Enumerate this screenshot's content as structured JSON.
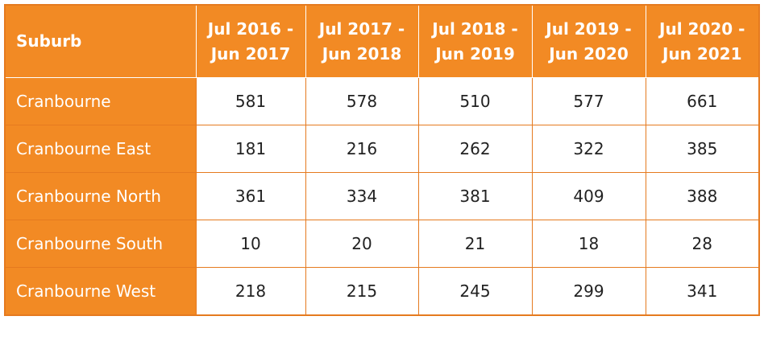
{
  "table": {
    "headers": [
      "Suburb",
      "Jul 2016 - Jun 2017",
      "Jul 2017 - Jun 2018",
      "Jul 2018 - Jun 2019",
      "Jul 2019 - Jun 2020",
      "Jul 2020 - Jun 2021"
    ],
    "rows": [
      {
        "suburb": "Cranbourne",
        "values": [
          "581",
          "578",
          "510",
          "577",
          "661"
        ]
      },
      {
        "suburb": "Cranbourne East",
        "values": [
          "181",
          "216",
          "262",
          "322",
          "385"
        ]
      },
      {
        "suburb": "Cranbourne North",
        "values": [
          "361",
          "334",
          "381",
          "409",
          "388"
        ]
      },
      {
        "suburb": "Cranbourne South",
        "values": [
          "10",
          "20",
          "21",
          "18",
          "28"
        ]
      },
      {
        "suburb": "Cranbourne West",
        "values": [
          "218",
          "215",
          "245",
          "299",
          "341"
        ]
      }
    ]
  },
  "colors": {
    "header_bg": "#f28a24",
    "border": "#e57a1f",
    "header_text": "#ffffff",
    "cell_text": "#222222"
  }
}
